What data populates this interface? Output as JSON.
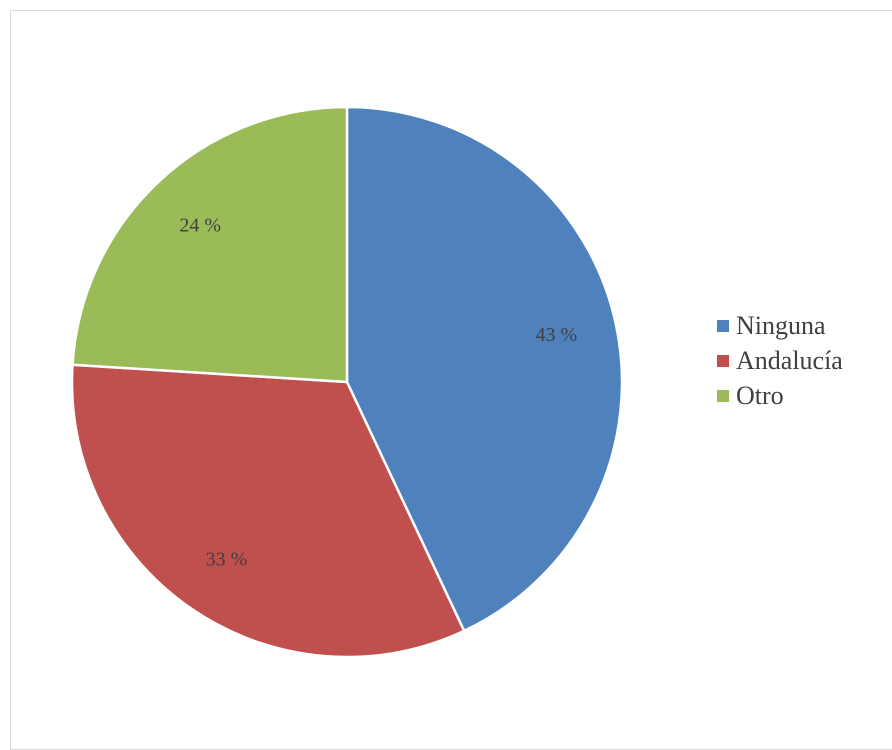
{
  "chart_data": {
    "type": "pie",
    "categories": [
      "Ninguna",
      "Andalucía",
      "Otro"
    ],
    "values": [
      43,
      33,
      24
    ],
    "data_labels": [
      "43 %",
      "33 %",
      "24 %"
    ],
    "colors": [
      "#4f81bd",
      "#c0504d",
      "#9bbb59"
    ],
    "title": "",
    "legend_position": "right",
    "start_angle": "top",
    "direction": "clockwise"
  }
}
